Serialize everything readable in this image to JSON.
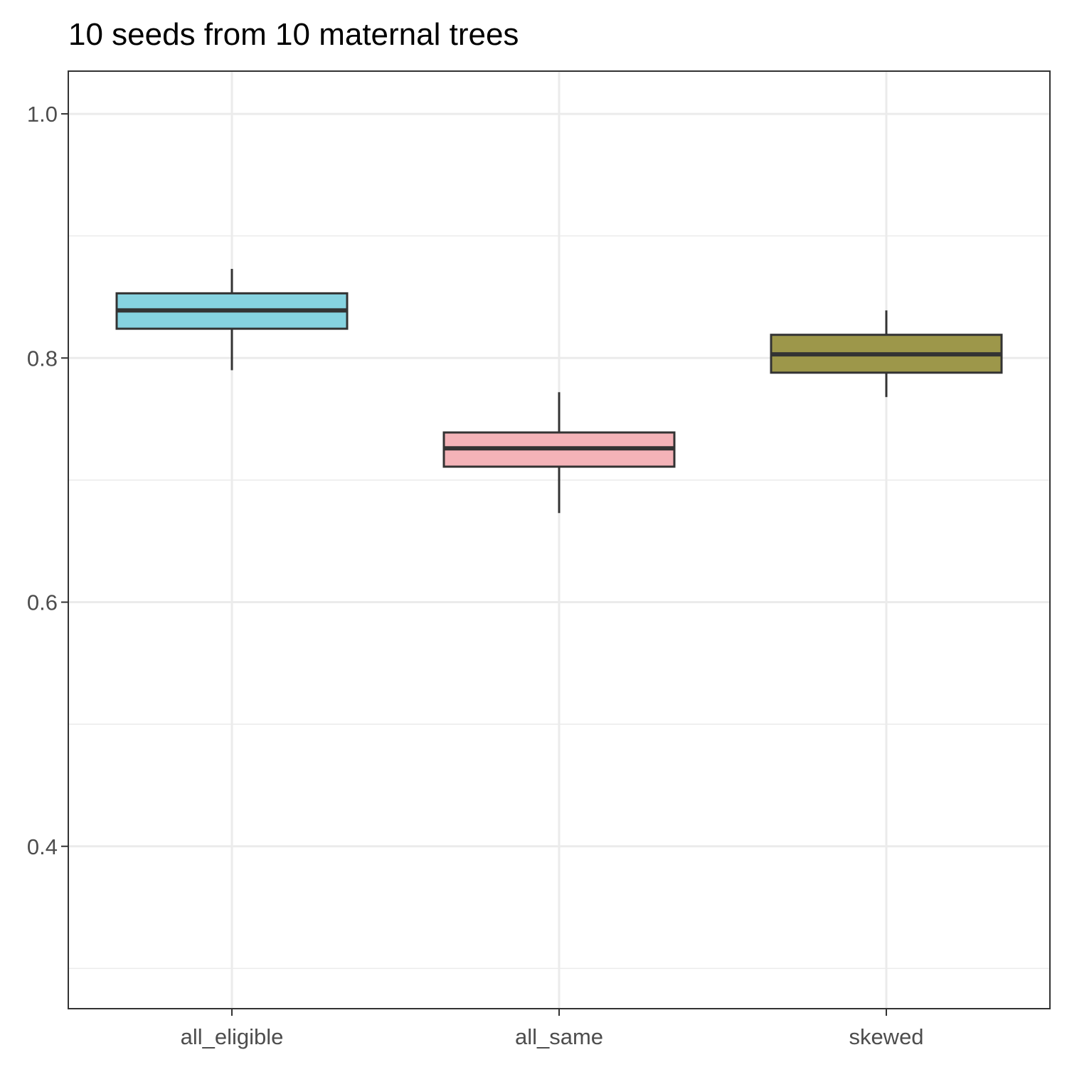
{
  "chart_data": {
    "type": "boxplot",
    "title": "10 seeds from 10 maternal trees",
    "xlabel": "",
    "ylabel": "",
    "ylim": [
      0.267,
      1.035
    ],
    "yticks": [
      0.4,
      0.6,
      0.8,
      1.0
    ],
    "ytick_labels": [
      "0.4",
      "0.6",
      "0.8",
      "1.0"
    ],
    "grid": true,
    "categories": [
      "all_eligible",
      "all_same",
      "skewed"
    ],
    "boxes": [
      {
        "category": "all_eligible",
        "whisker_low": 0.79,
        "q1": 0.824,
        "median": 0.839,
        "q3": 0.853,
        "whisker_high": 0.873,
        "color": "#86D3E0"
      },
      {
        "category": "all_same",
        "whisker_low": 0.673,
        "q1": 0.711,
        "median": 0.726,
        "q3": 0.739,
        "whisker_high": 0.772,
        "color": "#F4B3B8"
      },
      {
        "category": "skewed",
        "whisker_low": 0.768,
        "q1": 0.788,
        "median": 0.803,
        "q3": 0.819,
        "whisker_high": 0.839,
        "color": "#9D974A"
      }
    ]
  }
}
